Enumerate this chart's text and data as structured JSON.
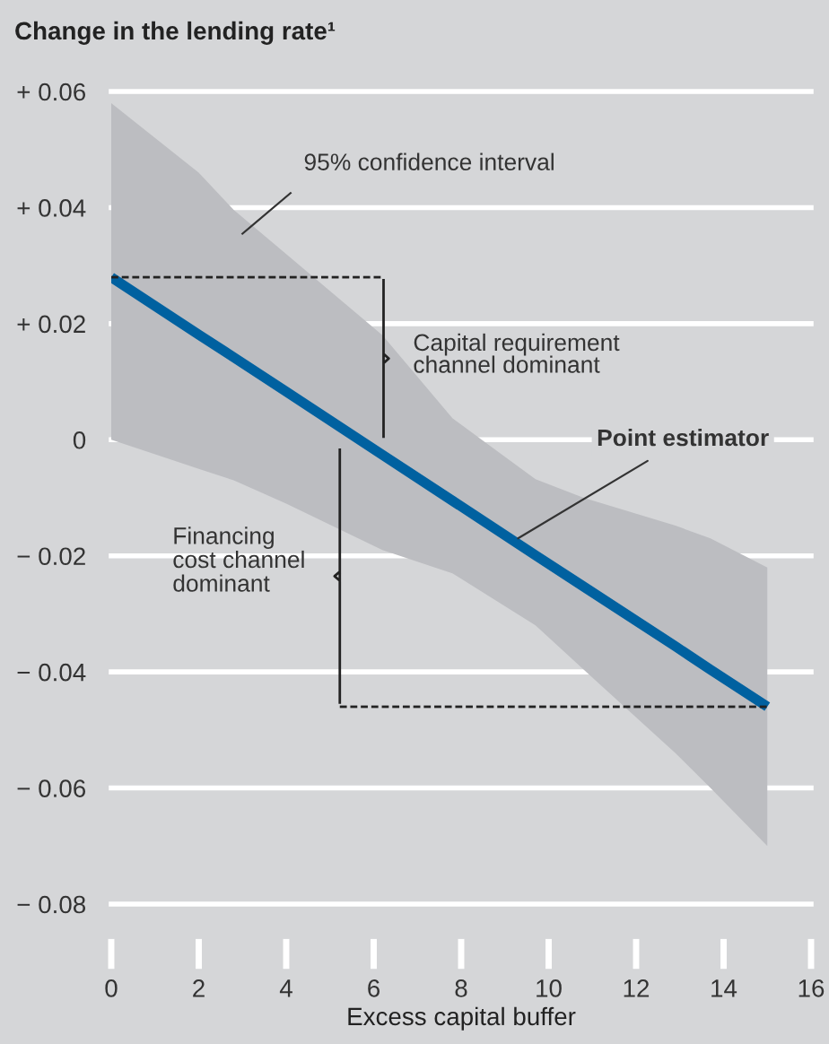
{
  "chart_data": {
    "type": "line",
    "ylabel": "Change in the lending rate¹",
    "xlabel": "Excess capital buffer",
    "xlim": [
      0,
      16
    ],
    "xticks": [
      0,
      2,
      4,
      6,
      8,
      10,
      12,
      14,
      16
    ],
    "ylim": [
      -0.08,
      0.06
    ],
    "yticks": [
      {
        "value": 0.06,
        "label": "+ 0.06"
      },
      {
        "value": 0.04,
        "label": "+ 0.04"
      },
      {
        "value": 0.02,
        "label": "+ 0.02"
      },
      {
        "value": 0,
        "label": "0"
      },
      {
        "value": -0.02,
        "label": "− 0.02"
      },
      {
        "value": -0.04,
        "label": "− 0.04"
      },
      {
        "value": -0.06,
        "label": "− 0.06"
      },
      {
        "value": -0.08,
        "label": "− 0.08"
      }
    ],
    "grid": "y",
    "series": [
      {
        "color": "#0061a0",
        "x": [
          0,
          2,
          2.8,
          4,
          6.2,
          7.8,
          9.7,
          10.8,
          12.9,
          13.7,
          15
        ],
        "values": [
          0.028,
          0.0181,
          0.0142,
          0.0083,
          -0.0026,
          -0.0105,
          -0.0199,
          -0.0253,
          -0.0356,
          -0.0396,
          -0.046
        ],
        "lower": [
          0,
          -0.005,
          -0.007,
          -0.011,
          -0.019,
          -0.023,
          -0.032,
          -0.0396,
          -0.054,
          -0.06,
          -0.07
        ],
        "upper": [
          0.058,
          0.046,
          0.0396,
          0.032,
          0.018,
          0.0037,
          -0.0068,
          -0.01,
          -0.0148,
          -0.017,
          -0.022
        ]
      }
    ],
    "annotations": [
      "95% confidence interval",
      "Capital requirement\nchannel dominant",
      {
        "text": "Point estimator",
        "x": 9.3,
        "y": -0.017
      },
      "Financing\ncost channel\ndominant"
    ]
  }
}
